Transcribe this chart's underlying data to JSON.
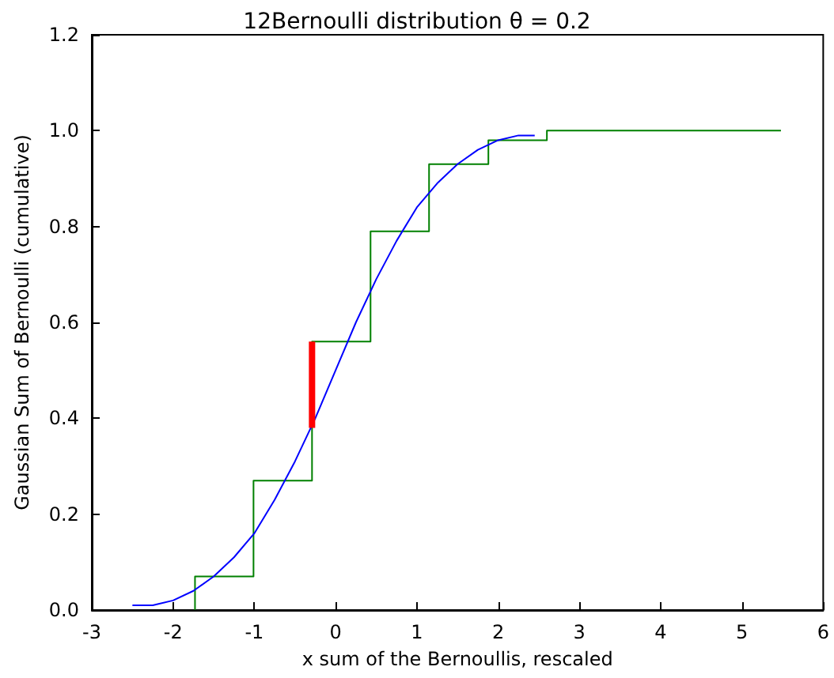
{
  "chart_data": {
    "type": "line",
    "title": "12Bernoulli distribution θ = 0.2",
    "xlabel": "x sum of the Bernoullis, rescaled",
    "ylabel": "Gaussian Sum of Bernoulli (cumulative)",
    "xlim": [
      -3,
      6
    ],
    "xticks": [
      -3,
      -2,
      -1,
      0,
      1,
      2,
      3,
      4,
      5,
      6
    ],
    "ylim": [
      0,
      1.2
    ],
    "yticks": [
      {
        "value": 0,
        "label": "0.0"
      },
      {
        "value": 0.2,
        "label": "0.2"
      },
      {
        "value": 0.4,
        "label": "0.4"
      },
      {
        "value": 0.6,
        "label": "0.6"
      },
      {
        "value": 0.8,
        "label": "0.8"
      },
      {
        "value": 1.0,
        "label": "1.0"
      },
      {
        "value": 1.2,
        "label": "1.2"
      }
    ],
    "grid": false,
    "marker": "none",
    "series": [
      {
        "type": "step",
        "color": "#008000",
        "x": [
          -1.73,
          -1.73,
          -1.01,
          -0.29,
          0.43,
          1.15,
          1.88,
          2.6,
          3.32,
          4.04,
          4.76,
          5.48
        ],
        "values": [
          0,
          0.07,
          0.27,
          0.56,
          0.79,
          0.93,
          0.98,
          1.0,
          1.0,
          1.0,
          1.0,
          1.0
        ]
      },
      {
        "color": "#0000ff",
        "x": [
          -2.5,
          -2.25,
          -2,
          -1.75,
          -1.5,
          -1.25,
          -1,
          -0.75,
          -0.5,
          -0.25,
          0,
          0.25,
          0.5,
          0.75,
          1,
          1.25,
          1.5,
          1.75,
          2,
          2.25,
          2.45
        ],
        "values": [
          0.01,
          0.01,
          0.02,
          0.04,
          0.07,
          0.11,
          0.16,
          0.23,
          0.31,
          0.4,
          0.5,
          0.6,
          0.69,
          0.77,
          0.84,
          0.89,
          0.93,
          0.96,
          0.98,
          0.99,
          0.99
        ]
      },
      {
        "type": "line",
        "color": "#ff0000",
        "x": [
          -0.29,
          -0.29
        ],
        "values": [
          0.38,
          0.56
        ]
      }
    ]
  }
}
